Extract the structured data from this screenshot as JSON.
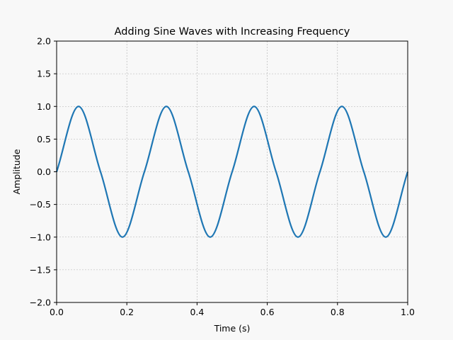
{
  "chart_data": {
    "type": "line",
    "title": "Adding Sine Waves with Increasing Frequency",
    "xlabel": "Time (s)",
    "ylabel": "Amplitude",
    "xlim": [
      0,
      1
    ],
    "ylim": [
      -2,
      2
    ],
    "xticks": [
      0,
      0.2,
      0.4,
      0.6,
      0.8,
      1
    ],
    "xtick_labels": [
      "0.0",
      "0.2",
      "0.4",
      "0.6",
      "0.8",
      "1.0"
    ],
    "yticks": [
      -2,
      -1.5,
      -1,
      -0.5,
      0,
      0.5,
      1,
      1.5,
      2
    ],
    "ytick_labels": [
      "−2.0",
      "−1.5",
      "−1.0",
      "−0.5",
      "0.0",
      "0.5",
      "1.0",
      "1.5",
      "2.0"
    ],
    "grid": true,
    "series": [
      {
        "color": "#1f77b4",
        "x": [
          0,
          0.0625,
          0.125,
          0.1875,
          0.25,
          0.3125,
          0.375,
          0.4375,
          0.5,
          0.5625,
          0.625,
          0.6875,
          0.75,
          0.8125,
          0.875,
          0.9375,
          1
        ],
        "y": [
          0,
          1,
          0,
          -1,
          0,
          1,
          0,
          -1,
          0,
          1,
          0,
          -1,
          0,
          1,
          0,
          -1,
          0
        ]
      }
    ]
  },
  "colors": {
    "background": "#f8f8f8",
    "line": "#1f77b4",
    "grid": "#b0b0b0"
  }
}
